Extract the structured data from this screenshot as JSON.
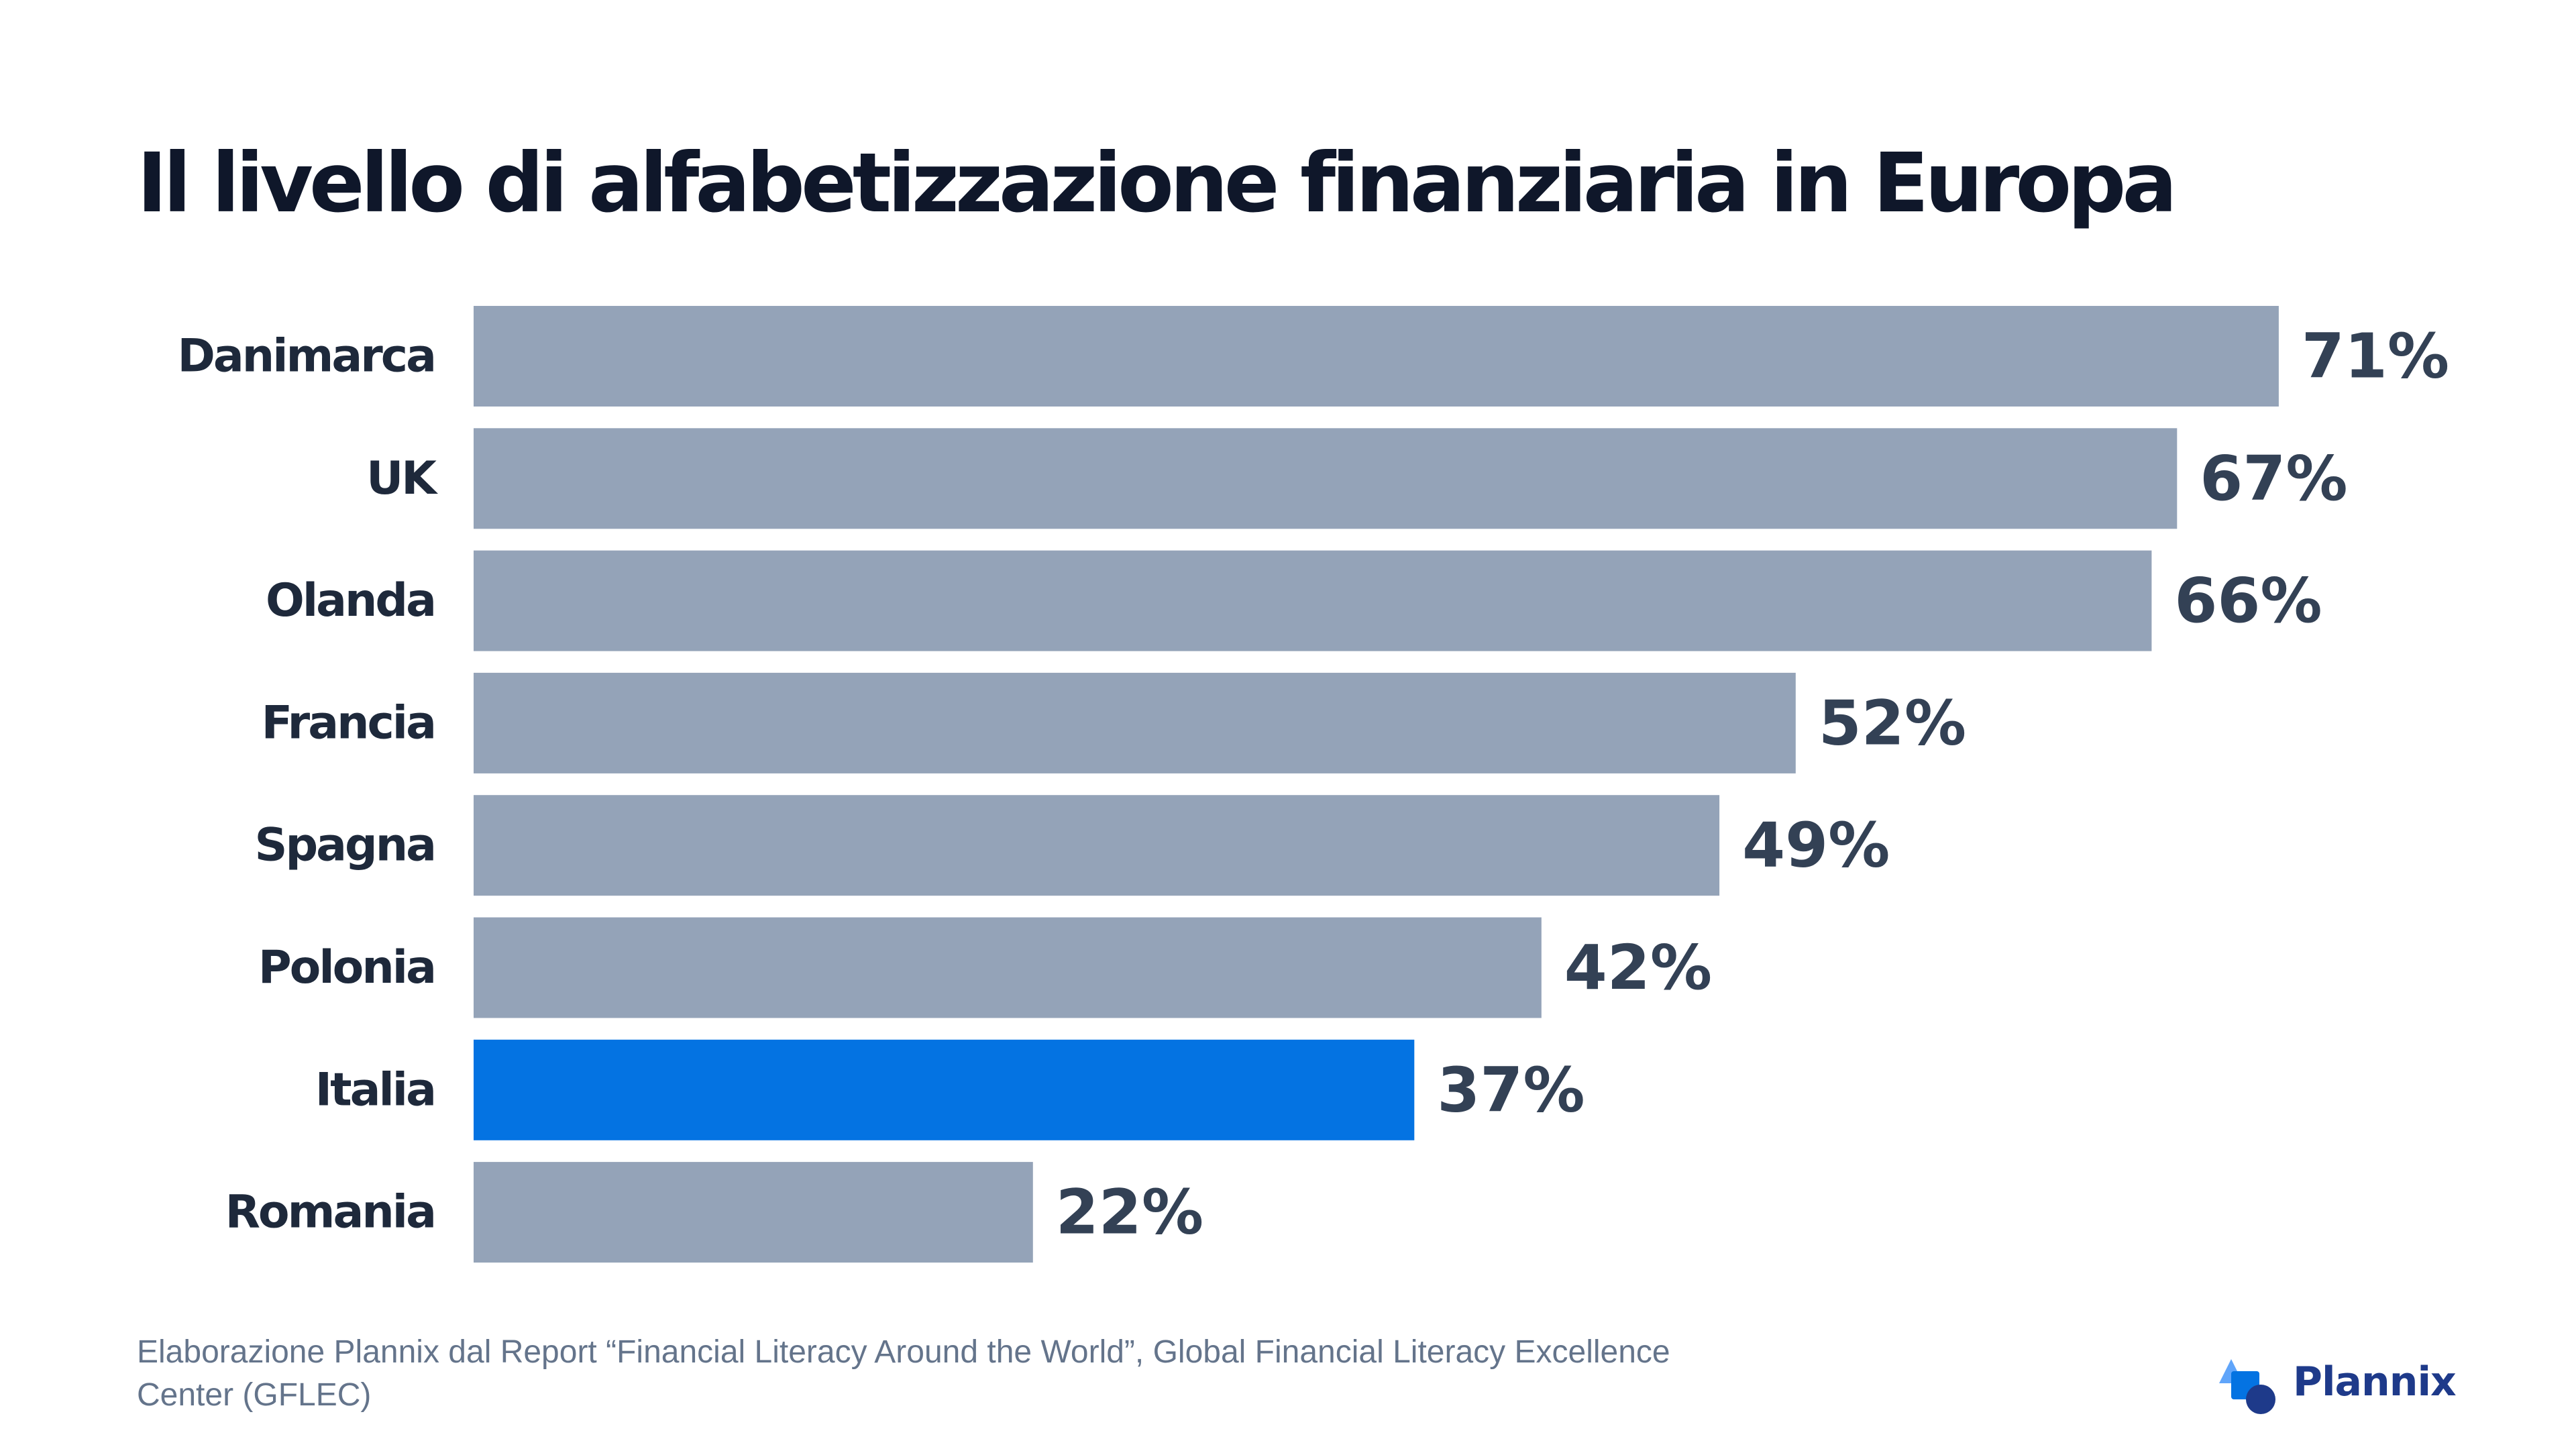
{
  "chart_data": {
    "type": "bar",
    "orientation": "horizontal",
    "title": "Il livello di alfabetizzazione finanziaria in Europa",
    "categories": [
      "Danimarca",
      "UK",
      "Olanda",
      "Francia",
      "Spagna",
      "Polonia",
      "Italia",
      "Romania"
    ],
    "values": [
      71,
      67,
      66,
      52,
      49,
      42,
      37,
      22
    ],
    "value_labels": [
      "71%",
      "67%",
      "66%",
      "52%",
      "49%",
      "42%",
      "37%",
      "22%"
    ],
    "unit": "%",
    "highlight": "Italia",
    "xlabel": "",
    "ylabel": "",
    "grid": false,
    "legend": "none",
    "colors": {
      "bar": "#94a3b8",
      "highlight": "#0473e2",
      "value_text": "#334155",
      "category_text": "#1e293b"
    }
  },
  "footer": {
    "source": "Elaborazione Plannix dal Report “Financial Literacy Around the World”, Global Financial Literacy Excellence Center (GFLEC)"
  },
  "brand": {
    "name": "Plannix",
    "icon": "plannix-logo-icon",
    "colors": {
      "triangle": "#60a5fa",
      "square": "#0473e2",
      "circle": "#1e3a8a"
    }
  }
}
